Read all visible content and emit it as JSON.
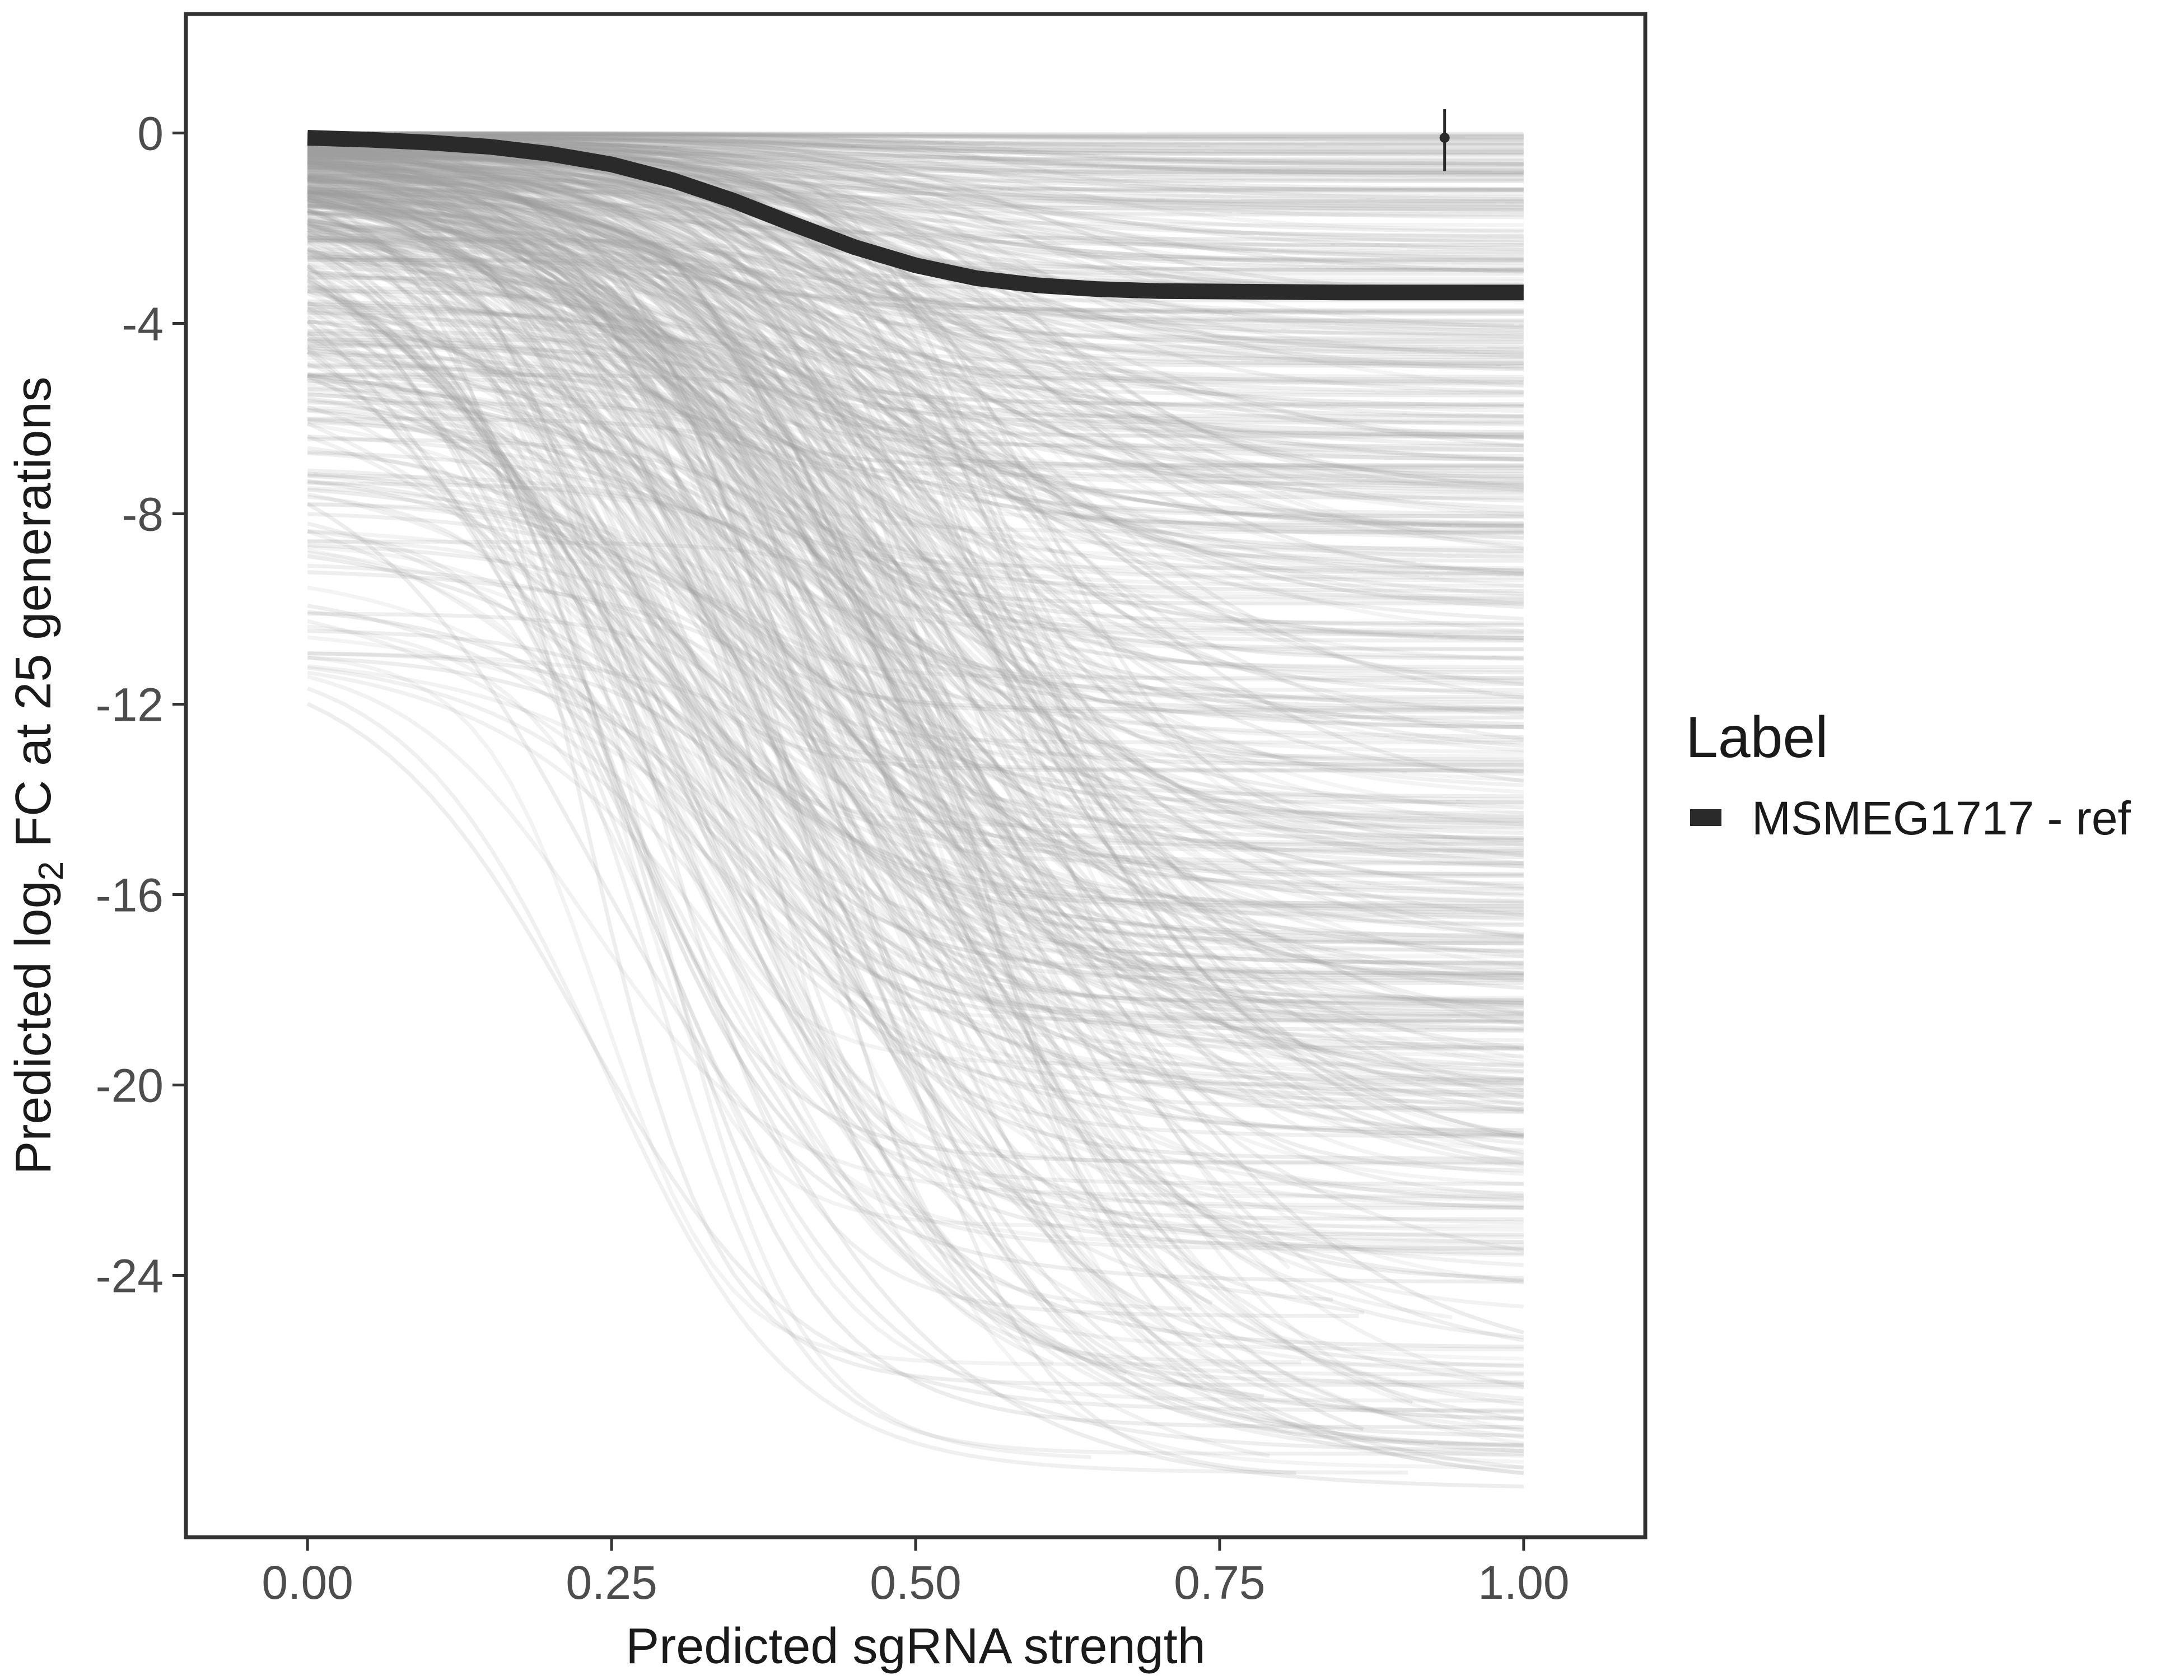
{
  "chart_data": {
    "type": "line",
    "xlabel": "Predicted sgRNA strength",
    "ylabel_parts": {
      "prefix": "Predicted  log",
      "subscript": "2",
      "suffix": " FC at 25 generations"
    },
    "xlim": [
      -0.1,
      1.1
    ],
    "ylim": [
      -29.5,
      2.5
    ],
    "x_ticks": [
      0,
      0.25,
      0.5,
      0.75,
      1
    ],
    "x_tick_labels": [
      "0.00",
      "0.25",
      "0.50",
      "0.75",
      "1.00"
    ],
    "y_ticks": [
      0,
      -4,
      -8,
      -12,
      -16,
      -20,
      -24
    ],
    "y_tick_labels": [
      "0",
      "-4",
      "-8",
      "-12",
      "-16",
      "-20",
      "-24"
    ],
    "grid": false,
    "legend": {
      "title": "Label",
      "position": "right",
      "entries": [
        {
          "label": "MSMEG1717 - ref",
          "color": "#2a2a2a"
        }
      ]
    },
    "highlight_series": {
      "name": "MSMEG1717 - ref",
      "color": "#2a2a2a",
      "x": [
        0,
        0.05,
        0.1,
        0.15,
        0.2,
        0.25,
        0.3,
        0.35,
        0.4,
        0.45,
        0.5,
        0.55,
        0.6,
        0.65,
        0.7,
        0.75,
        0.8,
        0.85,
        0.9,
        0.95,
        1.0
      ],
      "y": [
        -0.1,
        -0.14,
        -0.2,
        -0.29,
        -0.44,
        -0.66,
        -0.99,
        -1.42,
        -1.92,
        -2.4,
        -2.78,
        -3.05,
        -3.2,
        -3.28,
        -3.32,
        -3.33,
        -3.34,
        -3.35,
        -3.35,
        -3.35,
        -3.35
      ]
    },
    "point_estimate": {
      "x": 0.935,
      "y": -0.1,
      "ymin": -0.8,
      "ymax": 0.5
    },
    "background_series": {
      "color": "#9e9e9e",
      "count": 600,
      "x_range": [
        0,
        1
      ],
      "y_start_range": [
        -10.9,
        0
      ],
      "y_end_range": [
        -28.5,
        0
      ]
    },
    "colors": {
      "background_lines": "#9e9e9e",
      "highlight": "#2a2a2a",
      "panel_border": "#333333"
    }
  }
}
